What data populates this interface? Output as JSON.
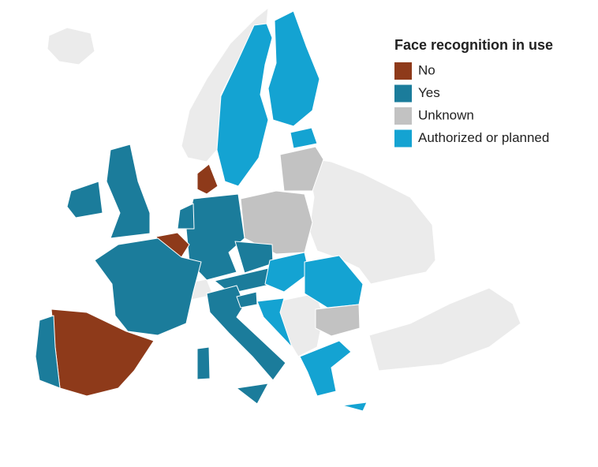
{
  "legend": {
    "title": "Face recognition in use",
    "items": [
      {
        "label": "No",
        "color": "#8e3a1a"
      },
      {
        "label": "Yes",
        "color": "#1b7c9b"
      },
      {
        "label": "Unknown",
        "color": "#c2c2c2"
      },
      {
        "label": "Authorized or planned",
        "color": "#14a3d2"
      }
    ]
  }
}
